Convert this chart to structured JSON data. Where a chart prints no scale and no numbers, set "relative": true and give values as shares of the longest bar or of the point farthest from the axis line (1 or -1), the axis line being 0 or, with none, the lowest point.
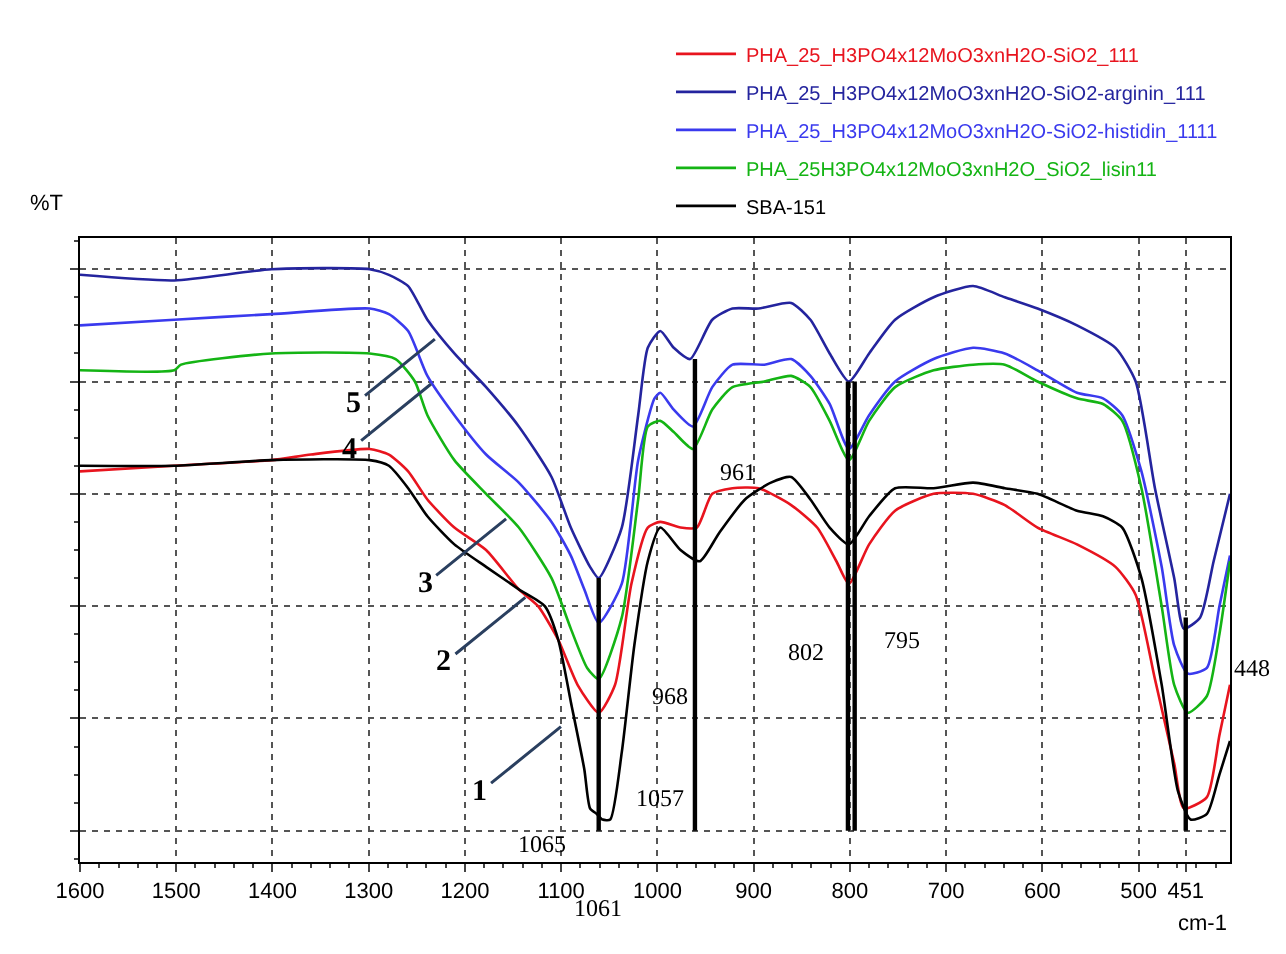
{
  "chart_data": {
    "type": "line",
    "relative": true,
    "ylabel": "%T",
    "xlabel": "cm-1",
    "xlim": [
      1600,
      405
    ],
    "xticks": [
      1600,
      1500,
      1400,
      1300,
      1200,
      1100,
      1000,
      900,
      800,
      700,
      600,
      500,
      451
    ],
    "grid": true,
    "legend": "top right",
    "marker": "none",
    "line_style": "solid",
    "series": [
      {
        "name": "PHA_25_H3PO4x12MoO3xnH2O-SiO2_111",
        "color": "#e8141e",
        "x": [
          1600,
          1502,
          1401,
          1360,
          1299,
          1279,
          1259,
          1239,
          1211,
          1178,
          1144,
          1124,
          1103,
          1083,
          1061,
          1044,
          1027,
          1010,
          997,
          976,
          959,
          943,
          922,
          895,
          861,
          834,
          814,
          801,
          780,
          753,
          713,
          672,
          639,
          605,
          564,
          524,
          503,
          483,
          463,
          453,
          429,
          416,
          405
        ],
        "values": [
          0.64,
          0.65,
          0.66,
          0.67,
          0.68,
          0.67,
          0.64,
          0.59,
          0.54,
          0.5,
          0.43,
          0.4,
          0.34,
          0.26,
          0.21,
          0.26,
          0.44,
          0.54,
          0.55,
          0.54,
          0.54,
          0.6,
          0.61,
          0.61,
          0.58,
          0.54,
          0.48,
          0.44,
          0.51,
          0.57,
          0.6,
          0.6,
          0.58,
          0.54,
          0.51,
          0.47,
          0.42,
          0.27,
          0.12,
          0.04,
          0.06,
          0.17,
          0.26
        ]
      },
      {
        "name": "PHA_25_H3PO4x12MoO3xnH2O-SiO2-arginin_111",
        "color": "#24249e",
        "x": [
          1600,
          1502,
          1401,
          1299,
          1279,
          1259,
          1239,
          1211,
          1178,
          1144,
          1110,
          1090,
          1070,
          1061,
          1037,
          1020,
          1010,
          997,
          983,
          966,
          943,
          922,
          895,
          861,
          841,
          821,
          801,
          780,
          753,
          713,
          672,
          639,
          605,
          564,
          524,
          503,
          483,
          463,
          453,
          436,
          422,
          405
        ],
        "values": [
          0.99,
          0.98,
          1.0,
          1.0,
          0.99,
          0.97,
          0.91,
          0.85,
          0.79,
          0.72,
          0.63,
          0.54,
          0.47,
          0.45,
          0.54,
          0.74,
          0.86,
          0.89,
          0.86,
          0.84,
          0.91,
          0.93,
          0.93,
          0.94,
          0.91,
          0.85,
          0.8,
          0.85,
          0.91,
          0.95,
          0.97,
          0.95,
          0.93,
          0.9,
          0.86,
          0.8,
          0.61,
          0.45,
          0.36,
          0.38,
          0.48,
          0.6
        ]
      },
      {
        "name": "PHA_25_H3PO4x12MoO3xnH2O-SiO2-histidin_1111",
        "color": "#3a3aee",
        "x": [
          1600,
          1502,
          1401,
          1299,
          1279,
          1259,
          1239,
          1211,
          1178,
          1144,
          1110,
          1090,
          1076,
          1061,
          1037,
          1020,
          1003,
          997,
          983,
          963,
          943,
          922,
          889,
          861,
          841,
          821,
          801,
          780,
          753,
          713,
          672,
          639,
          605,
          564,
          537,
          517,
          497,
          476,
          463,
          449,
          429,
          416,
          405
        ],
        "values": [
          0.9,
          0.91,
          0.92,
          0.93,
          0.92,
          0.89,
          0.81,
          0.74,
          0.67,
          0.62,
          0.55,
          0.49,
          0.43,
          0.37,
          0.44,
          0.66,
          0.77,
          0.78,
          0.75,
          0.72,
          0.79,
          0.83,
          0.83,
          0.84,
          0.81,
          0.76,
          0.68,
          0.74,
          0.8,
          0.84,
          0.86,
          0.85,
          0.82,
          0.78,
          0.77,
          0.74,
          0.64,
          0.47,
          0.33,
          0.28,
          0.29,
          0.4,
          0.49
        ]
      },
      {
        "name": "PHA_25H3PO4x12MoO3xnH2O_SiO2_lisin11",
        "color": "#14b414",
        "x": [
          1600,
          1502,
          1495,
          1401,
          1299,
          1272,
          1252,
          1239,
          1211,
          1178,
          1144,
          1110,
          1090,
          1073,
          1061,
          1037,
          1020,
          1010,
          997,
          983,
          963,
          943,
          922,
          889,
          861,
          841,
          821,
          801,
          780,
          753,
          713,
          672,
          639,
          605,
          564,
          537,
          517,
          497,
          476,
          463,
          449,
          429,
          416,
          405
        ],
        "values": [
          0.82,
          0.82,
          0.83,
          0.85,
          0.85,
          0.84,
          0.8,
          0.74,
          0.66,
          0.6,
          0.54,
          0.45,
          0.36,
          0.29,
          0.27,
          0.38,
          0.59,
          0.72,
          0.73,
          0.71,
          0.68,
          0.75,
          0.79,
          0.8,
          0.81,
          0.79,
          0.73,
          0.66,
          0.73,
          0.79,
          0.82,
          0.83,
          0.83,
          0.8,
          0.77,
          0.76,
          0.73,
          0.61,
          0.4,
          0.26,
          0.21,
          0.24,
          0.35,
          0.48
        ]
      },
      {
        "name": "SBA-151",
        "color": "#000000",
        "x": [
          1600,
          1502,
          1401,
          1299,
          1279,
          1259,
          1239,
          1211,
          1178,
          1144,
          1117,
          1103,
          1090,
          1076,
          1070,
          1063,
          1057,
          1049,
          1037,
          1024,
          1010,
          997,
          976,
          956,
          936,
          909,
          882,
          861,
          841,
          821,
          801,
          780,
          753,
          713,
          672,
          639,
          605,
          564,
          537,
          517,
          497,
          476,
          459,
          446,
          429,
          416,
          405
        ],
        "values": [
          0.65,
          0.65,
          0.66,
          0.66,
          0.65,
          0.61,
          0.56,
          0.51,
          0.47,
          0.43,
          0.4,
          0.34,
          0.23,
          0.11,
          0.04,
          0.03,
          0.02,
          0.02,
          0.14,
          0.33,
          0.48,
          0.54,
          0.5,
          0.48,
          0.53,
          0.59,
          0.62,
          0.63,
          0.59,
          0.54,
          0.51,
          0.56,
          0.61,
          0.61,
          0.62,
          0.61,
          0.6,
          0.57,
          0.56,
          0.54,
          0.45,
          0.26,
          0.07,
          0.02,
          0.03,
          0.1,
          0.16
        ]
      },
      {
        "color": "#000000",
        "x": [
          1061,
          1061
        ],
        "values": [
          0,
          0.45
        ]
      },
      {
        "color": "#000000",
        "x": [
          961,
          961
        ],
        "values": [
          0,
          0.84
        ]
      },
      {
        "color": "#000000",
        "x": [
          802,
          802
        ],
        "values": [
          0,
          0.8
        ]
      },
      {
        "color": "#000000",
        "x": [
          795,
          795
        ],
        "values": [
          0,
          0.8
        ]
      },
      {
        "color": "#000000",
        "x": [
          451,
          451
        ],
        "values": [
          0,
          0.38
        ]
      }
    ],
    "annotations": [
      "1065",
      "1061",
      "1057",
      "968",
      "961",
      "802",
      "795",
      "448",
      {
        "text": "1",
        "x": 1097,
        "y": 0.19
      },
      {
        "text": "2",
        "x": 1134,
        "y": 0.42
      },
      {
        "text": "3",
        "x": 1154,
        "y": 0.56
      },
      {
        "text": "4",
        "x": 1232,
        "y": 0.8
      },
      {
        "text": "5",
        "x": 1228,
        "y": 0.88
      }
    ]
  }
}
